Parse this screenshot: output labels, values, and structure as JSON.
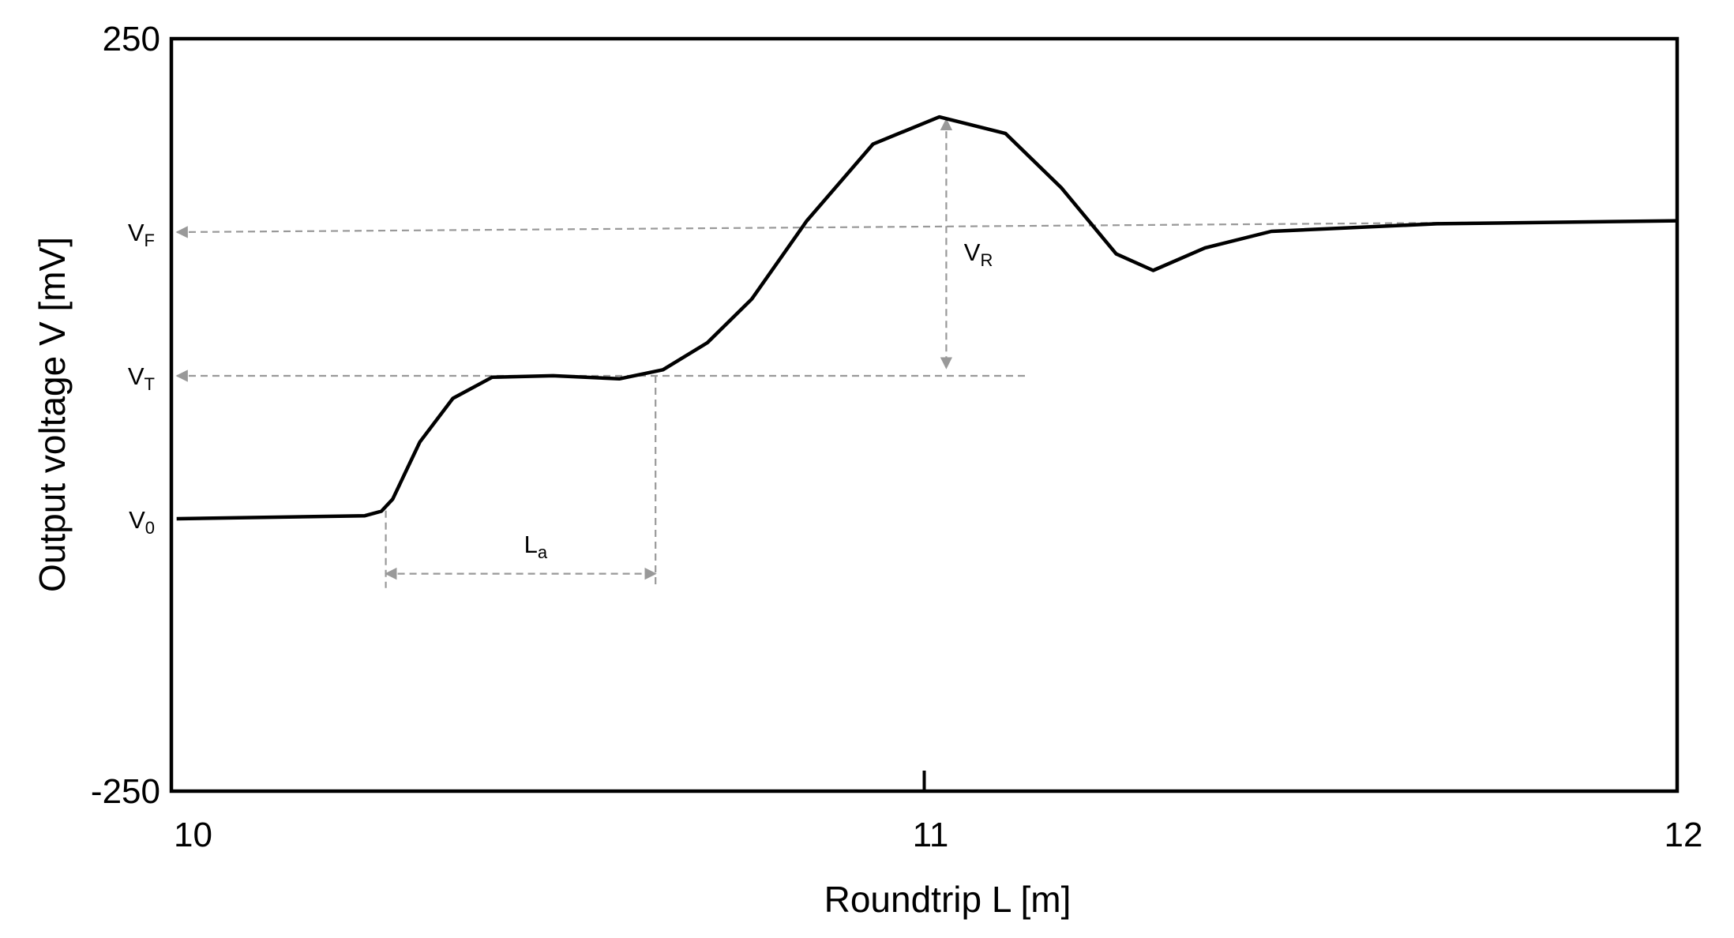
{
  "chart_data": {
    "type": "line",
    "xlabel": "Roundtrip L [m]",
    "ylabel": "Output voltage V [mV]",
    "x": [
      10.007,
      10.257,
      10.279,
      10.294,
      10.33,
      10.374,
      10.426,
      10.507,
      10.595,
      10.653,
      10.712,
      10.771,
      10.844,
      10.932,
      11.02,
      11.108,
      11.182,
      11.255,
      11.304,
      11.373,
      11.461,
      11.681,
      12.0
    ],
    "series": [
      {
        "color": "#000000",
        "values": [
          -69,
          -67,
          -64,
          -56,
          -18,
          11,
          25,
          26,
          24,
          30,
          48,
          77,
          129,
          180,
          198,
          187,
          151,
          107,
          96,
          111,
          122,
          127,
          129
        ]
      }
    ],
    "xlim": [
      10,
      12
    ],
    "ylim": [
      -250,
      250
    ],
    "xticks": [
      10,
      11,
      12
    ],
    "yticks": [
      250,
      -250
    ],
    "annotations": [
      {
        "text": "V",
        "sub": "F"
      },
      {
        "text": "V",
        "sub": "T"
      },
      {
        "text": "V",
        "sub": "0"
      },
      {
        "text": "V",
        "sub": "R"
      },
      {
        "text": "L",
        "sub": "a"
      }
    ]
  }
}
